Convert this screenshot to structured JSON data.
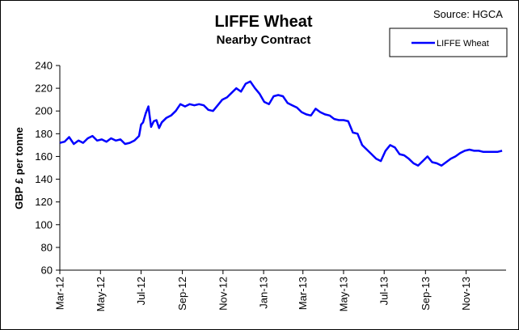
{
  "source_label": "Source: HGCA",
  "chart_data": {
    "type": "line",
    "title": "LIFFE Wheat",
    "subtitle": "Nearby Contract",
    "xlabel": "",
    "ylabel": "GBP £ per tonne",
    "ylim": [
      60,
      240
    ],
    "yticks": [
      60,
      80,
      100,
      120,
      140,
      160,
      180,
      200,
      220,
      240
    ],
    "xlim": [
      "2012-03-01",
      "2013-12-31"
    ],
    "xticks": [
      "Mar-12",
      "May-12",
      "Jul-12",
      "Sep-12",
      "Nov-12",
      "Jan-13",
      "Mar-13",
      "May-13",
      "Jul-13",
      "Sep-13",
      "Nov-13"
    ],
    "xtick_dates": [
      "2012-03-01",
      "2012-05-01",
      "2012-07-01",
      "2012-09-01",
      "2012-11-01",
      "2013-01-01",
      "2013-03-01",
      "2013-05-01",
      "2013-07-01",
      "2013-09-01",
      "2013-11-01"
    ],
    "grid": false,
    "legend_position": "top-right",
    "series": [
      {
        "name": "LIFFE Wheat",
        "color": "#0000ff",
        "x": [
          "2012-03-01",
          "2012-03-08",
          "2012-03-15",
          "2012-03-22",
          "2012-03-29",
          "2012-04-05",
          "2012-04-12",
          "2012-04-19",
          "2012-04-26",
          "2012-05-03",
          "2012-05-10",
          "2012-05-17",
          "2012-05-24",
          "2012-05-31",
          "2012-06-07",
          "2012-06-14",
          "2012-06-21",
          "2012-06-28",
          "2012-07-01",
          "2012-07-04",
          "2012-07-08",
          "2012-07-12",
          "2012-07-16",
          "2012-07-20",
          "2012-07-24",
          "2012-07-28",
          "2012-08-01",
          "2012-08-08",
          "2012-08-15",
          "2012-08-22",
          "2012-08-29",
          "2012-09-05",
          "2012-09-12",
          "2012-09-19",
          "2012-09-26",
          "2012-10-03",
          "2012-10-10",
          "2012-10-17",
          "2012-10-24",
          "2012-10-31",
          "2012-11-07",
          "2012-11-14",
          "2012-11-21",
          "2012-11-28",
          "2012-12-05",
          "2012-12-12",
          "2012-12-19",
          "2012-12-26",
          "2013-01-02",
          "2013-01-09",
          "2013-01-16",
          "2013-01-23",
          "2013-01-30",
          "2013-02-06",
          "2013-02-13",
          "2013-02-20",
          "2013-02-27",
          "2013-03-06",
          "2013-03-13",
          "2013-03-20",
          "2013-03-27",
          "2013-04-03",
          "2013-04-10",
          "2013-04-17",
          "2013-04-24",
          "2013-05-01",
          "2013-05-08",
          "2013-05-15",
          "2013-05-22",
          "2013-05-29",
          "2013-06-05",
          "2013-06-12",
          "2013-06-19",
          "2013-06-26",
          "2013-07-03",
          "2013-07-10",
          "2013-07-17",
          "2013-07-24",
          "2013-07-31",
          "2013-08-07",
          "2013-08-14",
          "2013-08-21",
          "2013-08-28",
          "2013-09-04",
          "2013-09-11",
          "2013-09-18",
          "2013-09-25",
          "2013-10-02",
          "2013-10-09",
          "2013-10-16",
          "2013-10-23",
          "2013-10-30",
          "2013-11-06",
          "2013-11-13",
          "2013-11-20",
          "2013-11-27",
          "2013-12-04",
          "2013-12-11",
          "2013-12-18",
          "2013-12-25"
        ],
        "values": [
          172,
          173,
          177,
          171,
          174,
          172,
          176,
          178,
          174,
          175,
          173,
          176,
          174,
          175,
          171,
          172,
          174,
          178,
          188,
          190,
          198,
          204,
          186,
          191,
          192,
          185,
          190,
          194,
          196,
          200,
          206,
          204,
          206,
          205,
          206,
          205,
          201,
          200,
          205,
          210,
          212,
          216,
          220,
          217,
          224,
          226,
          220,
          215,
          208,
          206,
          213,
          214,
          213,
          207,
          205,
          203,
          199,
          197,
          196,
          202,
          199,
          197,
          196,
          193,
          192,
          192,
          191,
          181,
          180,
          170,
          166,
          162,
          158,
          156,
          165,
          170,
          168,
          162,
          161,
          158,
          154,
          152,
          156,
          160,
          155,
          154,
          152,
          155,
          158,
          160,
          163,
          165,
          166,
          165,
          165,
          164,
          164,
          164,
          164,
          165
        ]
      }
    ]
  }
}
